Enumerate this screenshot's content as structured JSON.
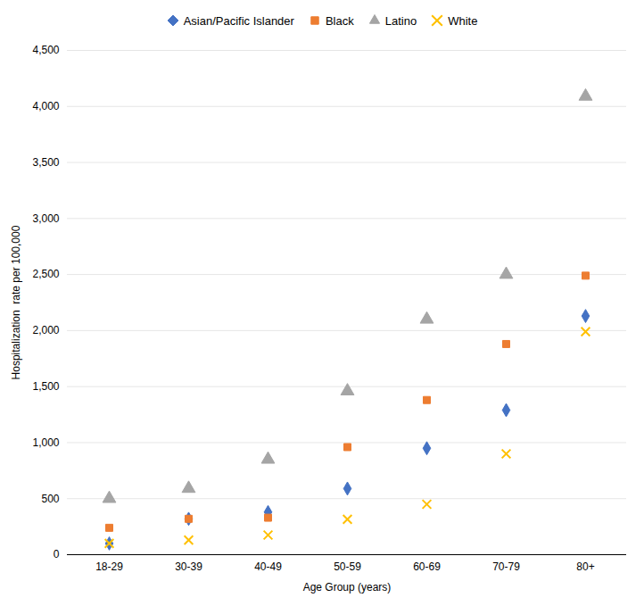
{
  "chart_data": {
    "type": "scatter",
    "categories": [
      "18-29",
      "30-39",
      "40-49",
      "50-59",
      "60-69",
      "70-79",
      "80+"
    ],
    "series": [
      {
        "name": "Asian/Pacific Islander",
        "color": "#4472C4",
        "marker": "diamond",
        "values": [
          100,
          320,
          380,
          590,
          950,
          1290,
          2130
        ]
      },
      {
        "name": "Black",
        "color": "#ED7D31",
        "marker": "square",
        "values": [
          240,
          320,
          330,
          960,
          1380,
          1880,
          2490
        ]
      },
      {
        "name": "Latino",
        "color": "#A5A5A5",
        "marker": "triangle",
        "values": [
          500,
          590,
          850,
          1460,
          2100,
          2500,
          4090
        ]
      },
      {
        "name": "White",
        "color": "#FFC000",
        "marker": "x",
        "values": [
          100,
          130,
          175,
          315,
          450,
          900,
          1990
        ]
      }
    ],
    "xlabel": "Age Group (years)",
    "ylabel": "Hospitalization  rate per 100,000",
    "ylim": [
      0,
      4500
    ],
    "yticks": [
      0,
      500,
      {
        "value": 1000,
        "label": "1,000"
      },
      {
        "value": 1500,
        "label": "1,500"
      },
      {
        "value": 2000,
        "label": "2,000"
      },
      {
        "value": 2500,
        "label": "2,500"
      },
      {
        "value": 3000,
        "label": "3,000"
      },
      {
        "value": 3500,
        "label": "3,500"
      },
      {
        "value": 4000,
        "label": "4,000"
      },
      {
        "value": 4500,
        "label": "4,500"
      }
    ],
    "grid": true,
    "legend": "top"
  }
}
